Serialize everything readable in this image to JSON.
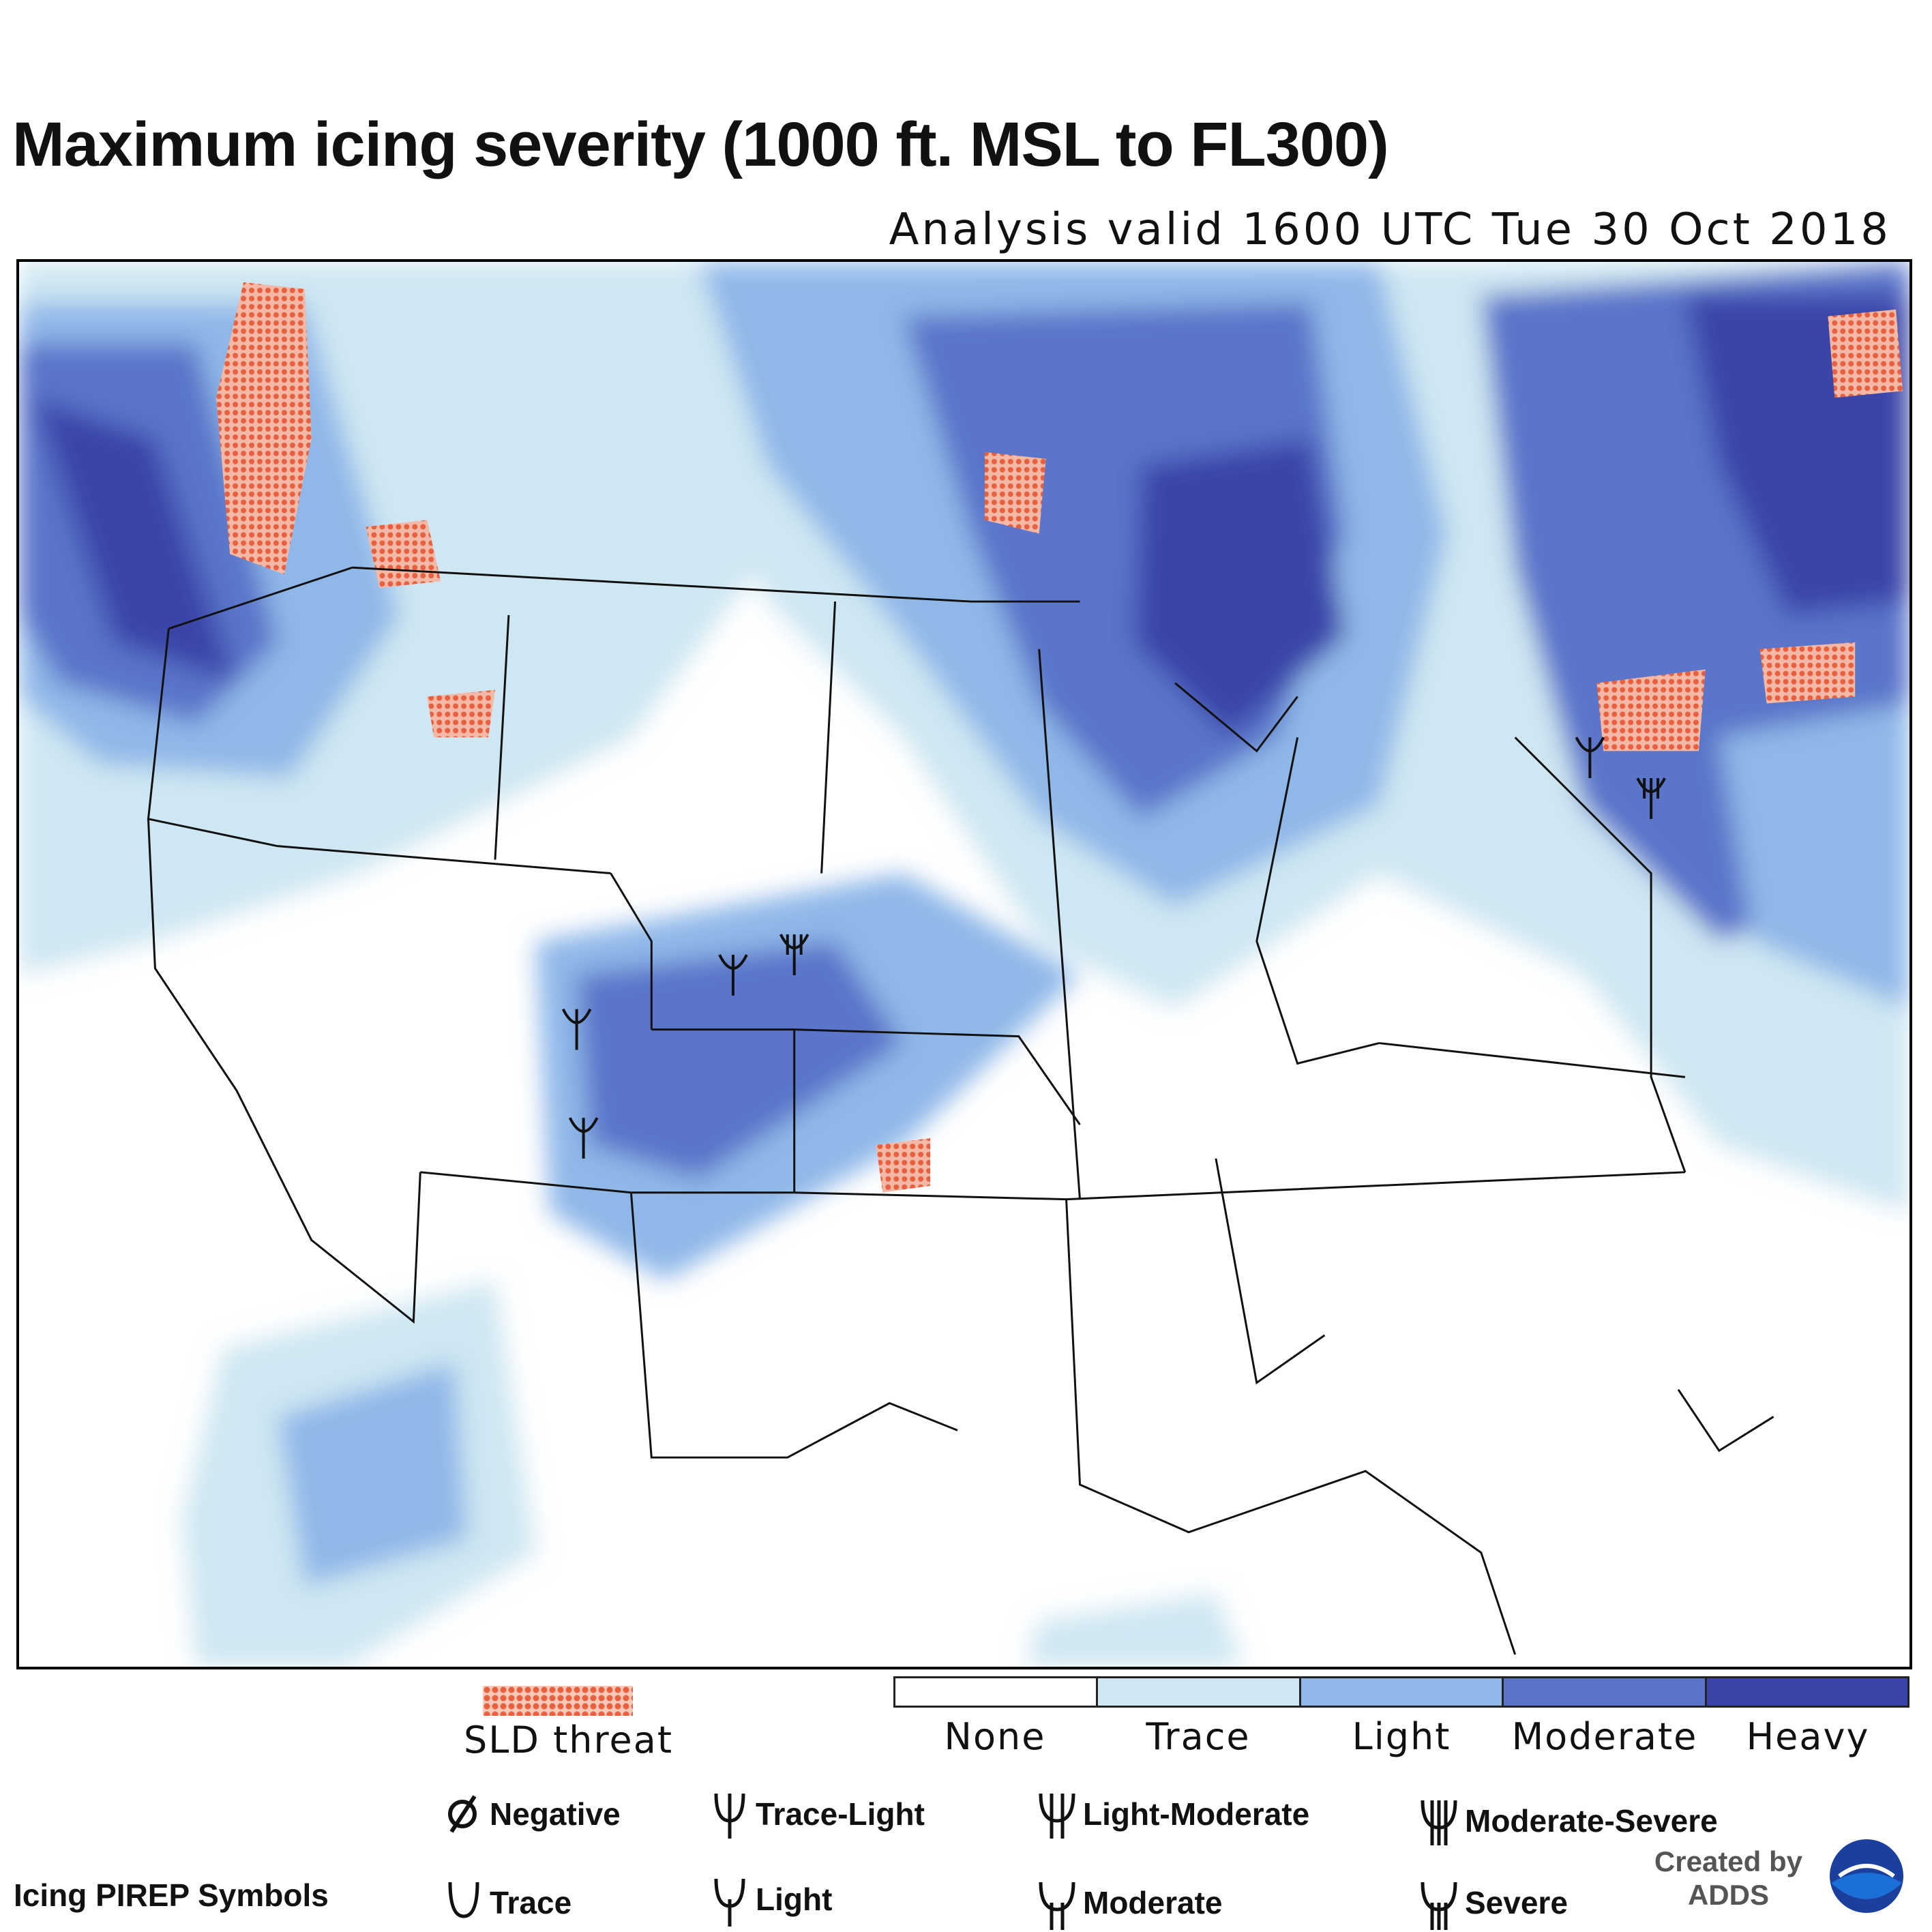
{
  "title": "Maximum icing severity (1000 ft. MSL to FL300)",
  "subtitle": "Analysis valid 1600 UTC Tue 30 Oct 2018",
  "credit": {
    "line1": "Created by",
    "line2": "ADDS"
  },
  "legend": {
    "sld_label": "SLD threat",
    "sld_color": "#e8603f",
    "severity": [
      {
        "label": "None",
        "color": "#ffffff"
      },
      {
        "label": "Trace",
        "color": "#cfe7f2"
      },
      {
        "label": "Light",
        "color": "#8fb8e8"
      },
      {
        "label": "Moderate",
        "color": "#5a74c9"
      },
      {
        "label": "Heavy",
        "color": "#3b45a8"
      }
    ]
  },
  "pirep": {
    "title": "Icing PIREP Symbols",
    "symbols": [
      {
        "label": "Negative",
        "icon": "negative-icon"
      },
      {
        "label": "Trace-Light",
        "icon": "trace-light-icon"
      },
      {
        "label": "Light-Moderate",
        "icon": "light-moderate-icon"
      },
      {
        "label": "Moderate-Severe",
        "icon": "moderate-severe-icon"
      },
      {
        "label": "Trace",
        "icon": "trace-icon"
      },
      {
        "label": "Light",
        "icon": "light-icon"
      },
      {
        "label": "Moderate",
        "icon": "moderate-icon"
      },
      {
        "label": "Severe",
        "icon": "severe-icon"
      }
    ]
  }
}
